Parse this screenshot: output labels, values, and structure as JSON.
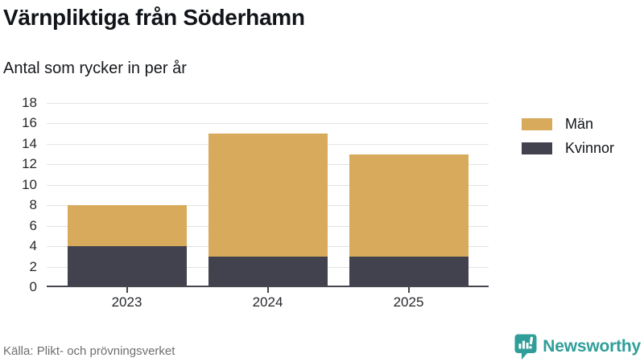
{
  "title": "Värnpliktiga från Söderhamn",
  "subtitle": "Antal som rycker in per år",
  "source": "Källa: Plikt- och prövningsverket",
  "brand": {
    "name": "Newsworthy",
    "color": "#2f9e99"
  },
  "colors": {
    "men": "#d8aa5b",
    "women": "#42414e",
    "grid": "#e3e3e3",
    "axis": "#46454e",
    "text": "#111418",
    "muted": "#6e6e72"
  },
  "chart_data": {
    "type": "bar",
    "stacked": true,
    "categories": [
      "2023",
      "2024",
      "2025"
    ],
    "series": [
      {
        "name": "Kvinnor",
        "values": [
          4,
          3,
          3
        ],
        "color": "#42414e"
      },
      {
        "name": "Män",
        "values": [
          4,
          12,
          10
        ],
        "color": "#d8aa5b"
      }
    ],
    "totals": [
      8,
      15,
      13
    ],
    "yticks": [
      0,
      2,
      4,
      6,
      8,
      10,
      12,
      14,
      16,
      18
    ],
    "ylim": [
      0,
      18
    ],
    "xlabel": "",
    "ylabel": "",
    "grid": true,
    "legend": [
      "Män",
      "Kvinnor"
    ],
    "legend_position": "right"
  }
}
